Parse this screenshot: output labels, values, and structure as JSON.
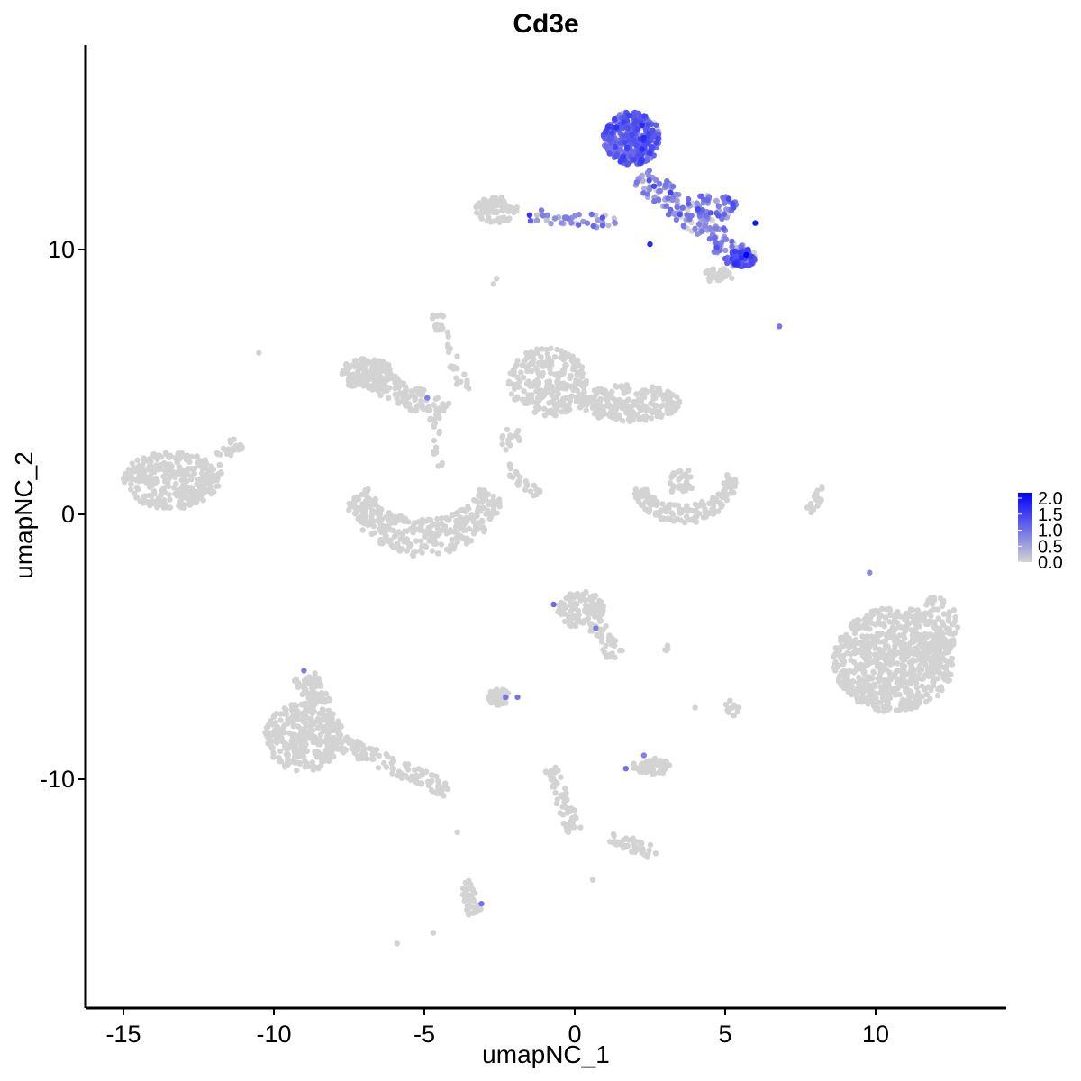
{
  "chart_data": {
    "type": "scatter",
    "title": "Cd3e",
    "xlabel": "umapNC_1",
    "ylabel": "umapNC_2",
    "xlim": [
      -16.5,
      14.5
    ],
    "ylim": [
      -18.5,
      17.5
    ],
    "xticks": [
      -15,
      -10,
      -5,
      0,
      5,
      10
    ],
    "xtick_labels": [
      "-15",
      "-10",
      "-5",
      "0",
      "5",
      "10"
    ],
    "yticks": [
      -10,
      0,
      10
    ],
    "ytick_labels": [
      "-10",
      "0",
      "10"
    ],
    "grid": false,
    "color_scale": {
      "low": "#d3d3d3",
      "high": "#0000ff",
      "min": 0.0,
      "max": 2.0,
      "legend_labels": [
        "2.0",
        "1.5",
        "1.0",
        "0.5",
        "0.0"
      ],
      "legend_position": "right"
    },
    "clusters": [
      {
        "shape": "ellipse",
        "cx": -13.4,
        "cy": 1.3,
        "rx": 1.6,
        "ry": 1.1,
        "n": 320,
        "expr": 0
      },
      {
        "shape": "line",
        "x0": -12.2,
        "y0": 1.4,
        "x1": -11.2,
        "y1": 2.8,
        "width": 0.3,
        "n": 30,
        "expr": 0
      },
      {
        "shape": "ellipse",
        "cx": -6.9,
        "cy": 5.3,
        "rx": 0.9,
        "ry": 0.6,
        "n": 140,
        "expr": 0
      },
      {
        "shape": "line",
        "x0": -6.8,
        "y0": 5.2,
        "x1": -4.3,
        "y1": 3.8,
        "width": 0.45,
        "n": 120,
        "expr": 0
      },
      {
        "shape": "line",
        "x0": -4.6,
        "y0": 7.6,
        "x1": -3.6,
        "y1": 4.5,
        "width": 0.2,
        "n": 40,
        "expr": 0
      },
      {
        "shape": "line",
        "x0": -4.7,
        "y0": 3.6,
        "x1": -4.5,
        "y1": 1.8,
        "width": 0.15,
        "n": 15,
        "expr": 0
      },
      {
        "shape": "arc",
        "cx": -5.0,
        "cy": 1.6,
        "rx": 2.4,
        "ry": 2.5,
        "a0": 200,
        "a1": 340,
        "width": 0.7,
        "n": 340,
        "expr": 0
      },
      {
        "shape": "ellipse",
        "cx": -0.9,
        "cy": 5.0,
        "rx": 1.3,
        "ry": 1.3,
        "n": 250,
        "expr": 0
      },
      {
        "shape": "ellipse",
        "cx": 1.8,
        "cy": 4.2,
        "rx": 1.7,
        "ry": 0.7,
        "n": 220,
        "expr": 0
      },
      {
        "shape": "line",
        "x0": -2.0,
        "y0": 3.5,
        "x1": -2.2,
        "y1": 2.4,
        "width": 0.3,
        "n": 18,
        "expr": 0
      },
      {
        "shape": "line",
        "x0": -2.3,
        "y0": 1.8,
        "x1": -1.2,
        "y1": 0.7,
        "width": 0.2,
        "n": 25,
        "expr": 0
      },
      {
        "shape": "arc",
        "cx": 3.6,
        "cy": 1.5,
        "rx": 1.6,
        "ry": 1.5,
        "a0": 200,
        "a1": 360,
        "width": 0.35,
        "n": 150,
        "expr": 0
      },
      {
        "shape": "line",
        "x0": 3.1,
        "y0": 1.2,
        "x1": 3.9,
        "y1": 1.3,
        "width": 0.4,
        "n": 35,
        "expr": 0
      },
      {
        "shape": "line",
        "x0": 7.8,
        "y0": 0.1,
        "x1": 8.3,
        "y1": 1.0,
        "width": 0.15,
        "n": 18,
        "expr": 0
      },
      {
        "shape": "ellipse",
        "cx": 10.6,
        "cy": -5.5,
        "rx": 2.0,
        "ry": 2.0,
        "n": 700,
        "expr": 0
      },
      {
        "shape": "ellipse",
        "cx": 12.0,
        "cy": -4.5,
        "rx": 0.8,
        "ry": 1.4,
        "n": 120,
        "expr": 0
      },
      {
        "shape": "ellipse",
        "cx": -9.0,
        "cy": -8.4,
        "rx": 1.3,
        "ry": 1.3,
        "n": 320,
        "expr": 0
      },
      {
        "shape": "line",
        "x0": -9.0,
        "y0": -6.0,
        "x1": -8.5,
        "y1": -7.2,
        "width": 0.4,
        "n": 70,
        "expr": 0
      },
      {
        "shape": "line",
        "x0": -8.0,
        "y0": -8.5,
        "x1": -4.2,
        "y1": -10.4,
        "width": 0.3,
        "n": 130,
        "expr": 0
      },
      {
        "shape": "ellipse",
        "cx": 0.2,
        "cy": -3.6,
        "rx": 0.8,
        "ry": 0.7,
        "n": 110,
        "expr": 0
      },
      {
        "shape": "line",
        "x0": 0.6,
        "y0": -4.0,
        "x1": 1.4,
        "y1": -5.4,
        "width": 0.3,
        "n": 40,
        "expr": 0
      },
      {
        "shape": "ellipse",
        "cx": -2.5,
        "cy": -6.9,
        "rx": 0.4,
        "ry": 0.3,
        "n": 50,
        "expr": 0
      },
      {
        "shape": "ellipse",
        "cx": 2.6,
        "cy": -9.5,
        "rx": 0.7,
        "ry": 0.3,
        "n": 70,
        "expr": 0
      },
      {
        "shape": "line",
        "x0": -0.8,
        "y0": -9.6,
        "x1": 0.0,
        "y1": -12.0,
        "width": 0.25,
        "n": 60,
        "expr": 0
      },
      {
        "shape": "line",
        "x0": 1.2,
        "y0": -12.2,
        "x1": 2.7,
        "y1": -12.8,
        "width": 0.25,
        "n": 40,
        "expr": 0
      },
      {
        "shape": "line",
        "x0": -3.6,
        "y0": -13.8,
        "x1": -3.3,
        "y1": -15.2,
        "width": 0.25,
        "n": 40,
        "expr": 0
      },
      {
        "shape": "line",
        "x0": 5.0,
        "y0": -7.1,
        "x1": 5.4,
        "y1": -7.5,
        "width": 0.2,
        "n": 12,
        "expr": 0
      },
      {
        "shape": "line",
        "x0": 3.0,
        "y0": -5.0,
        "x1": 3.1,
        "y1": -5.1,
        "width": 0.1,
        "n": 4,
        "expr": 0
      },
      {
        "shape": "ellipse",
        "cx": -2.6,
        "cy": 11.5,
        "rx": 0.7,
        "ry": 0.5,
        "n": 80,
        "expr": 0
      },
      {
        "shape": "ellipse",
        "cx": 4.8,
        "cy": 9.0,
        "rx": 0.5,
        "ry": 0.3,
        "n": 35,
        "expr": 0
      },
      {
        "shape": "ellipse",
        "cx": 1.9,
        "cy": 14.2,
        "rx": 0.95,
        "ry": 1.0,
        "n": 380,
        "expr": 1.0
      },
      {
        "shape": "line",
        "x0": 2.2,
        "y0": 12.8,
        "x1": 5.6,
        "y1": 9.6,
        "width": 0.45,
        "n": 160,
        "expr": 0.7
      },
      {
        "shape": "ellipse",
        "cx": 5.6,
        "cy": 9.7,
        "rx": 0.45,
        "ry": 0.35,
        "n": 80,
        "expr": 1.2
      },
      {
        "shape": "ellipse",
        "cx": 4.6,
        "cy": 11.6,
        "rx": 0.8,
        "ry": 0.5,
        "n": 60,
        "expr": 0.8
      },
      {
        "shape": "line",
        "x0": -1.5,
        "y0": 11.3,
        "x1": 1.5,
        "y1": 11.0,
        "width": 0.25,
        "n": 40,
        "expr": 0.6
      }
    ],
    "extra_points": [
      {
        "x": -10.5,
        "y": 6.1,
        "v": 0
      },
      {
        "x": -4.9,
        "y": 4.4,
        "v": 0.8
      },
      {
        "x": -2.7,
        "y": 8.7,
        "v": 0
      },
      {
        "x": -2.6,
        "y": 8.9,
        "v": 0
      },
      {
        "x": 6.8,
        "y": 7.1,
        "v": 0.9
      },
      {
        "x": 9.8,
        "y": -2.2,
        "v": 0.7
      },
      {
        "x": -9.0,
        "y": -5.9,
        "v": 0.8
      },
      {
        "x": -0.7,
        "y": -3.4,
        "v": 1.0
      },
      {
        "x": 0.7,
        "y": -4.3,
        "v": 0.8
      },
      {
        "x": -2.3,
        "y": -6.9,
        "v": 0.9
      },
      {
        "x": -1.9,
        "y": -6.9,
        "v": 0.9
      },
      {
        "x": 1.7,
        "y": -9.6,
        "v": 0.9
      },
      {
        "x": 2.3,
        "y": -9.1,
        "v": 0.8
      },
      {
        "x": -3.1,
        "y": -14.7,
        "v": 0.9
      },
      {
        "x": -5.9,
        "y": -16.2,
        "v": 0
      },
      {
        "x": -4.7,
        "y": -15.8,
        "v": 0
      },
      {
        "x": -3.9,
        "y": -12.0,
        "v": 0
      },
      {
        "x": 0.6,
        "y": -13.8,
        "v": 0
      },
      {
        "x": 4.0,
        "y": -7.3,
        "v": 0
      },
      {
        "x": 6.0,
        "y": 11.0,
        "v": 1.8
      },
      {
        "x": 5.7,
        "y": 9.8,
        "v": 2.0
      },
      {
        "x": 2.5,
        "y": 10.2,
        "v": 1.6
      },
      {
        "x": -1.5,
        "y": 11.3,
        "v": 1.5
      }
    ]
  }
}
